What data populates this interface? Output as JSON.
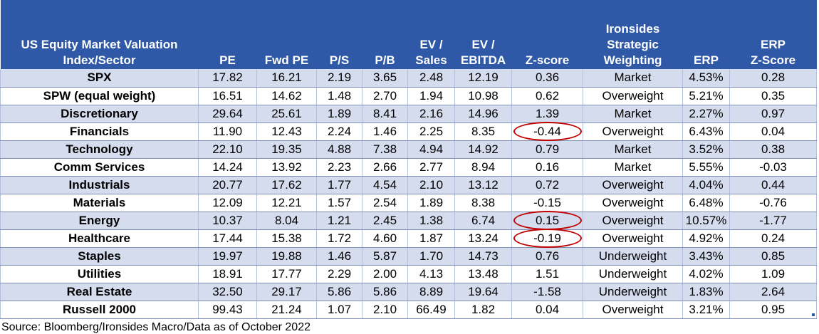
{
  "header": {
    "col0_line1": "US Equity Market Valuation",
    "col0_line2": "Index/Sector",
    "pe": "PE",
    "fwd_pe": "Fwd PE",
    "ps": "P/S",
    "pb": "P/B",
    "ev_sales_line1": "EV /",
    "ev_sales_line2": "Sales",
    "ev_ebitda_line1": "EV /",
    "ev_ebitda_line2": "EBITDA",
    "zscore": "Z-score",
    "weight_line1": "Ironsides",
    "weight_line2": "Strategic",
    "weight_line3": "Weighting",
    "erp": "ERP",
    "erp_z_line1": "ERP",
    "erp_z_line2": "Z-Score"
  },
  "rows": [
    {
      "name": "SPX",
      "pe": "17.82",
      "fwd_pe": "16.21",
      "ps": "2.19",
      "pb": "3.65",
      "ev_sales": "2.48",
      "ev_ebitda": "12.19",
      "zscore": "0.36",
      "weight": "Market",
      "erp": "4.53%",
      "erp_z": "0.28",
      "circled": false
    },
    {
      "name": "SPW (equal weight)",
      "pe": "16.51",
      "fwd_pe": "14.62",
      "ps": "1.48",
      "pb": "2.70",
      "ev_sales": "1.94",
      "ev_ebitda": "10.98",
      "zscore": "0.62",
      "weight": "Overweight",
      "erp": "5.21%",
      "erp_z": "0.35",
      "circled": false
    },
    {
      "name": "Discretionary",
      "pe": "29.64",
      "fwd_pe": "25.61",
      "ps": "1.89",
      "pb": "8.41",
      "ev_sales": "2.16",
      "ev_ebitda": "14.96",
      "zscore": "1.39",
      "weight": "Market",
      "erp": "2.27%",
      "erp_z": "0.97",
      "circled": false
    },
    {
      "name": "Financials",
      "pe": "11.90",
      "fwd_pe": "12.43",
      "ps": "2.24",
      "pb": "1.46",
      "ev_sales": "2.25",
      "ev_ebitda": "8.35",
      "zscore": "-0.44",
      "weight": "Overweight",
      "erp": "6.43%",
      "erp_z": "0.04",
      "circled": true
    },
    {
      "name": "Technology",
      "pe": "22.10",
      "fwd_pe": "19.35",
      "ps": "4.88",
      "pb": "7.38",
      "ev_sales": "4.94",
      "ev_ebitda": "14.92",
      "zscore": "0.79",
      "weight": "Market",
      "erp": "3.52%",
      "erp_z": "0.38",
      "circled": false
    },
    {
      "name": "Comm Services",
      "pe": "14.24",
      "fwd_pe": "13.92",
      "ps": "2.23",
      "pb": "2.66",
      "ev_sales": "2.77",
      "ev_ebitda": "8.94",
      "zscore": "0.16",
      "weight": "Market",
      "erp": "5.55%",
      "erp_z": "-0.03",
      "circled": false
    },
    {
      "name": "Industrials",
      "pe": "20.77",
      "fwd_pe": "17.62",
      "ps": "1.77",
      "pb": "4.54",
      "ev_sales": "2.10",
      "ev_ebitda": "13.12",
      "zscore": "0.72",
      "weight": "Overweight",
      "erp": "4.04%",
      "erp_z": "0.44",
      "circled": false
    },
    {
      "name": "Materials",
      "pe": "12.09",
      "fwd_pe": "12.21",
      "ps": "1.57",
      "pb": "2.54",
      "ev_sales": "1.89",
      "ev_ebitda": "8.38",
      "zscore": "-0.15",
      "weight": "Overweight",
      "erp": "6.48%",
      "erp_z": "-0.76",
      "circled": false
    },
    {
      "name": "Energy",
      "pe": "10.37",
      "fwd_pe": "8.04",
      "ps": "1.21",
      "pb": "2.45",
      "ev_sales": "1.38",
      "ev_ebitda": "6.74",
      "zscore": "0.15",
      "weight": "Overweight",
      "erp": "10.57%",
      "erp_z": "-1.77",
      "circled": true
    },
    {
      "name": "Healthcare",
      "pe": "17.44",
      "fwd_pe": "15.38",
      "ps": "1.72",
      "pb": "4.60",
      "ev_sales": "1.87",
      "ev_ebitda": "13.24",
      "zscore": "-0.19",
      "weight": "Overweight",
      "erp": "4.92%",
      "erp_z": "0.24",
      "circled": true
    },
    {
      "name": "Staples",
      "pe": "19.97",
      "fwd_pe": "19.88",
      "ps": "1.46",
      "pb": "5.87",
      "ev_sales": "1.70",
      "ev_ebitda": "14.73",
      "zscore": "0.76",
      "weight": "Underweight",
      "erp": "3.43%",
      "erp_z": "0.85",
      "circled": false
    },
    {
      "name": "Utilities",
      "pe": "18.91",
      "fwd_pe": "17.77",
      "ps": "2.29",
      "pb": "2.00",
      "ev_sales": "4.13",
      "ev_ebitda": "13.48",
      "zscore": "1.51",
      "weight": "Underweight",
      "erp": "4.02%",
      "erp_z": "1.09",
      "circled": false
    },
    {
      "name": "Real Estate",
      "pe": "32.50",
      "fwd_pe": "29.17",
      "ps": "5.86",
      "pb": "5.86",
      "ev_sales": "8.89",
      "ev_ebitda": "19.64",
      "zscore": "-1.58",
      "weight": "Underweight",
      "erp": "1.83%",
      "erp_z": "2.64",
      "circled": false
    },
    {
      "name": "Russell 2000",
      "pe": "99.43",
      "fwd_pe": "21.24",
      "ps": "1.07",
      "pb": "2.10",
      "ev_sales": "66.49",
      "ev_ebitda": "1.82",
      "zscore": "0.04",
      "weight": "Overweight",
      "erp": "3.21%",
      "erp_z": "0.95",
      "circled": false
    }
  ],
  "source": "Source: Bloomberg/Ironsides Macro/Data as of October 2022",
  "colors": {
    "header_bg": "#2f59a6",
    "band_bg": "#d5dcee",
    "circle": "#c00000"
  }
}
